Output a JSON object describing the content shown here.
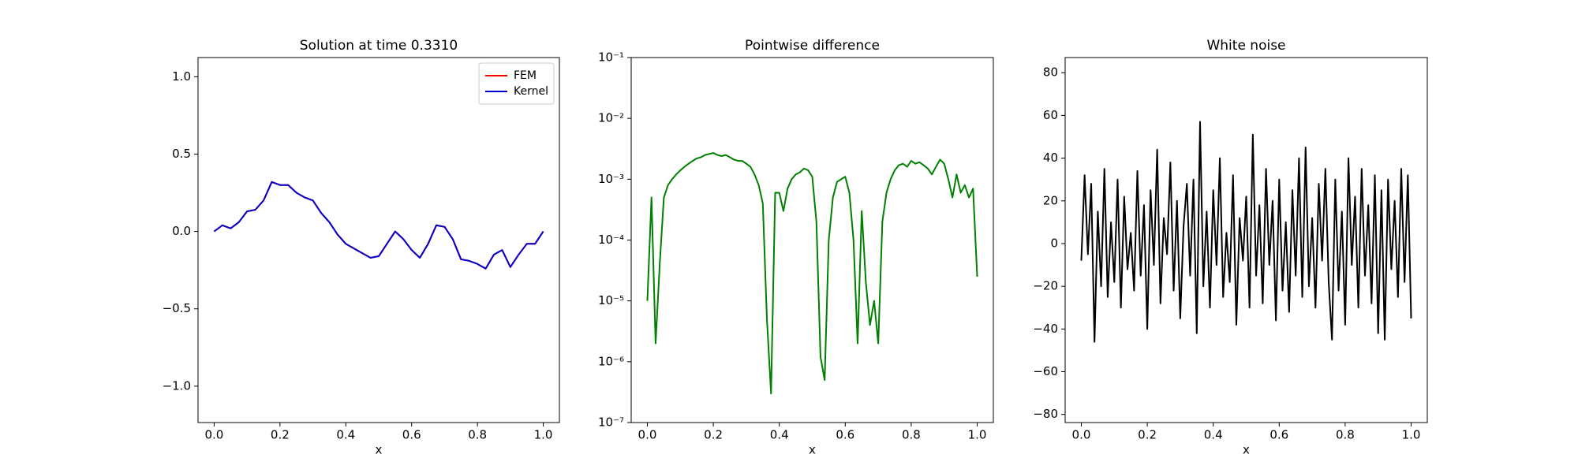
{
  "chart_data": [
    {
      "type": "line",
      "title": "Solution at time 0.3310",
      "xlabel": "x",
      "x": [
        0,
        0.025,
        0.05,
        0.075,
        0.1,
        0.125,
        0.15,
        0.175,
        0.2,
        0.225,
        0.25,
        0.275,
        0.3,
        0.325,
        0.35,
        0.375,
        0.4,
        0.425,
        0.45,
        0.475,
        0.5,
        0.525,
        0.55,
        0.575,
        0.6,
        0.625,
        0.65,
        0.675,
        0.7,
        0.725,
        0.75,
        0.775,
        0.8,
        0.825,
        0.85,
        0.875,
        0.9,
        0.925,
        0.95,
        0.975,
        1
      ],
      "series": [
        {
          "name": "FEM",
          "color": "#ff0000",
          "values": [
            0,
            0.04,
            0.02,
            0.06,
            0.13,
            0.14,
            0.2,
            0.32,
            0.3,
            0.3,
            0.25,
            0.22,
            0.2,
            0.12,
            0.06,
            -0.02,
            -0.08,
            -0.11,
            -0.14,
            -0.17,
            -0.16,
            -0.08,
            0,
            -0.05,
            -0.12,
            -0.17,
            -0.08,
            0.04,
            0.03,
            -0.05,
            -0.18,
            -0.19,
            -0.21,
            -0.24,
            -0.15,
            -0.12,
            -0.23,
            -0.15,
            -0.08,
            -0.08,
            0
          ]
        },
        {
          "name": "Kernel",
          "color": "#0000cc",
          "values": [
            0,
            0.04,
            0.02,
            0.06,
            0.13,
            0.14,
            0.2,
            0.32,
            0.3,
            0.3,
            0.25,
            0.22,
            0.2,
            0.12,
            0.06,
            -0.02,
            -0.08,
            -0.11,
            -0.14,
            -0.17,
            -0.16,
            -0.08,
            0,
            -0.05,
            -0.12,
            -0.17,
            -0.08,
            0.04,
            0.03,
            -0.05,
            -0.18,
            -0.19,
            -0.21,
            -0.24,
            -0.15,
            -0.12,
            -0.23,
            -0.15,
            -0.08,
            -0.08,
            0
          ]
        }
      ],
      "xlim": [
        -0.049,
        1.049
      ],
      "xticks": [
        {
          "value": 0,
          "label": "0.0"
        },
        {
          "value": 0.2,
          "label": "0.2"
        },
        {
          "value": 0.4,
          "label": "0.4"
        },
        {
          "value": 0.6,
          "label": "0.6"
        },
        {
          "value": 0.8,
          "label": "0.8"
        },
        {
          "value": 1,
          "label": "1.0"
        }
      ],
      "ylim": [
        -1.235,
        1.124
      ],
      "yticks": [
        {
          "value": -1,
          "label": "−1.0"
        },
        {
          "value": -0.5,
          "label": "−0.5"
        },
        {
          "value": 0,
          "label": "0.0"
        },
        {
          "value": 0.5,
          "label": "0.5"
        },
        {
          "value": 1,
          "label": "1.0"
        }
      ],
      "legend": "upper right"
    },
    {
      "type": "line",
      "title": "Pointwise difference",
      "xlabel": "x",
      "log_y": true,
      "color": "#008000",
      "x": [
        0,
        0.0125,
        0.025,
        0.0375,
        0.05,
        0.0625,
        0.075,
        0.0875,
        0.1,
        0.1125,
        0.125,
        0.1375,
        0.15,
        0.1625,
        0.175,
        0.1875,
        0.2,
        0.2125,
        0.225,
        0.2375,
        0.25,
        0.2625,
        0.275,
        0.2875,
        0.3,
        0.3125,
        0.325,
        0.3375,
        0.35,
        0.3625,
        0.375,
        0.3875,
        0.4,
        0.4125,
        0.425,
        0.4375,
        0.45,
        0.4625,
        0.475,
        0.4875,
        0.5,
        0.5125,
        0.525,
        0.5375,
        0.55,
        0.5625,
        0.575,
        0.5875,
        0.6,
        0.6125,
        0.625,
        0.6375,
        0.65,
        0.6625,
        0.675,
        0.6875,
        0.7,
        0.7125,
        0.725,
        0.7375,
        0.75,
        0.7625,
        0.775,
        0.7875,
        0.8,
        0.8125,
        0.825,
        0.8375,
        0.85,
        0.8625,
        0.875,
        0.8875,
        0.9,
        0.9125,
        0.925,
        0.9375,
        0.95,
        0.9625,
        0.975,
        0.9875,
        1
      ],
      "values": [
        1e-05,
        0.0005,
        2e-06,
        4e-05,
        0.0005,
        0.0008,
        0.001,
        0.0012,
        0.0014,
        0.0016,
        0.0018,
        0.002,
        0.0022,
        0.0023,
        0.0025,
        0.0026,
        0.0027,
        0.0025,
        0.0024,
        0.0025,
        0.0023,
        0.0021,
        0.002,
        0.002,
        0.0018,
        0.0016,
        0.0012,
        0.0008,
        0.0004,
        5e-06,
        3e-07,
        0.0006,
        0.0006,
        0.0003,
        0.0007,
        0.001,
        0.0012,
        0.0013,
        0.0015,
        0.0014,
        0.0011,
        0.0002,
        1.2e-06,
        5e-07,
        0.0001,
        0.0005,
        0.0009,
        0.001,
        0.0011,
        0.0006,
        0.0001,
        2e-06,
        0.0003,
        2e-05,
        4e-06,
        1e-05,
        2e-06,
        0.0002,
        0.0006,
        0.001,
        0.0014,
        0.0017,
        0.0018,
        0.0016,
        0.002,
        0.0018,
        0.0019,
        0.0017,
        0.0015,
        0.0012,
        0.0016,
        0.0021,
        0.0018,
        0.001,
        0.0005,
        0.0012,
        0.0006,
        0.0008,
        0.0005,
        0.0007,
        2.5e-05
      ],
      "xlim": [
        -0.049,
        1.049
      ],
      "xticks": [
        {
          "value": 0,
          "label": "0.0"
        },
        {
          "value": 0.2,
          "label": "0.2"
        },
        {
          "value": 0.4,
          "label": "0.4"
        },
        {
          "value": 0.6,
          "label": "0.6"
        },
        {
          "value": 0.8,
          "label": "0.8"
        },
        {
          "value": 1,
          "label": "1.0"
        }
      ],
      "ylim": [
        1e-07,
        0.1
      ],
      "yticks": [
        {
          "value": 1e-07,
          "label": "10⁻⁷"
        },
        {
          "value": 1e-06,
          "label": "10⁻⁶"
        },
        {
          "value": 1e-05,
          "label": "10⁻⁵"
        },
        {
          "value": 0.0001,
          "label": "10⁻⁴"
        },
        {
          "value": 0.001,
          "label": "10⁻³"
        },
        {
          "value": 0.01,
          "label": "10⁻²"
        },
        {
          "value": 0.1,
          "label": "10⁻¹"
        }
      ]
    },
    {
      "type": "line",
      "title": "White noise",
      "xlabel": "x",
      "color": "#000000",
      "x": [
        0,
        0.01,
        0.02,
        0.03,
        0.04,
        0.05,
        0.06,
        0.07,
        0.08,
        0.09,
        0.1,
        0.11,
        0.12,
        0.13,
        0.14,
        0.15,
        0.16,
        0.17,
        0.18,
        0.19,
        0.2,
        0.21,
        0.22,
        0.23,
        0.24,
        0.25,
        0.26,
        0.27,
        0.28,
        0.29,
        0.3,
        0.31,
        0.32,
        0.33,
        0.34,
        0.35,
        0.36,
        0.37,
        0.38,
        0.39,
        0.4,
        0.41,
        0.42,
        0.43,
        0.44,
        0.45,
        0.46,
        0.47,
        0.48,
        0.49,
        0.5,
        0.51,
        0.52,
        0.53,
        0.54,
        0.55,
        0.56,
        0.57,
        0.58,
        0.59,
        0.6,
        0.61,
        0.62,
        0.63,
        0.64,
        0.65,
        0.66,
        0.67,
        0.68,
        0.69,
        0.7,
        0.71,
        0.72,
        0.73,
        0.74,
        0.75,
        0.76,
        0.77,
        0.78,
        0.79,
        0.8,
        0.81,
        0.82,
        0.83,
        0.84,
        0.85,
        0.86,
        0.87,
        0.88,
        0.89,
        0.9,
        0.91,
        0.92,
        0.93,
        0.94,
        0.95,
        0.96,
        0.97,
        0.98,
        0.99,
        1
      ],
      "values": [
        -8,
        32,
        -5,
        28,
        -46,
        15,
        -20,
        35,
        -25,
        10,
        -18,
        30,
        -30,
        22,
        -12,
        5,
        -22,
        34,
        -15,
        18,
        -40,
        25,
        -10,
        44,
        -28,
        12,
        -5,
        38,
        -22,
        20,
        -35,
        8,
        28,
        -15,
        30,
        -42,
        57,
        -20,
        15,
        -30,
        25,
        -10,
        40,
        -25,
        5,
        -18,
        32,
        -38,
        12,
        -8,
        22,
        -30,
        51,
        -15,
        18,
        -28,
        35,
        -10,
        20,
        -36,
        30,
        -22,
        10,
        -32,
        25,
        -15,
        40,
        -25,
        45,
        -20,
        12,
        -30,
        28,
        -8,
        35,
        -18,
        -45,
        30,
        -22,
        15,
        -38,
        40,
        -10,
        22,
        -30,
        35,
        -15,
        18,
        -28,
        32,
        -42,
        25,
        -45,
        30,
        -12,
        20,
        -25,
        35,
        -18,
        32,
        -35
      ],
      "xlim": [
        -0.049,
        1.049
      ],
      "xticks": [
        {
          "value": 0,
          "label": "0.0"
        },
        {
          "value": 0.2,
          "label": "0.2"
        },
        {
          "value": 0.4,
          "label": "0.4"
        },
        {
          "value": 0.6,
          "label": "0.6"
        },
        {
          "value": 0.8,
          "label": "0.8"
        },
        {
          "value": 1,
          "label": "1.0"
        }
      ],
      "ylim": [
        -83.8,
        87.1
      ],
      "yticks": [
        {
          "value": -80,
          "label": "−80"
        },
        {
          "value": -60,
          "label": "−60"
        },
        {
          "value": -40,
          "label": "−40"
        },
        {
          "value": -20,
          "label": "−20"
        },
        0,
        20,
        40,
        60,
        80
      ]
    }
  ]
}
